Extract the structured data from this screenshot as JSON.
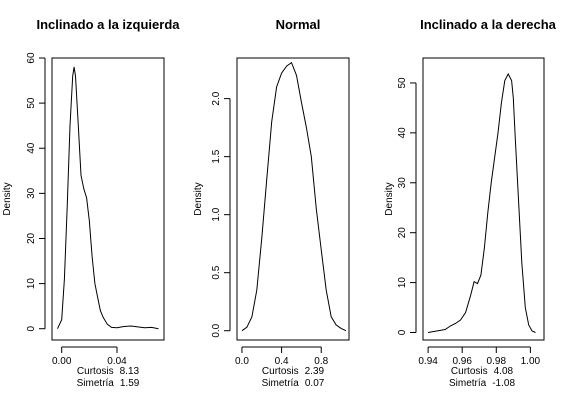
{
  "chart_data": [
    {
      "type": "line",
      "title": "Inclinado a la izquierda",
      "xlabel": "",
      "ylabel": "Density",
      "xlim": [
        -0.007,
        0.074
      ],
      "ylim": [
        -2.5,
        60
      ],
      "xticks": [
        0.0,
        0.04
      ],
      "xtick_labels": [
        "0.00",
        "0.04"
      ],
      "yticks": [
        0,
        10,
        20,
        30,
        40,
        50,
        60
      ],
      "ytick_labels": [
        "0",
        "10",
        "20",
        "30",
        "40",
        "50",
        "60"
      ],
      "stats": [
        {
          "label": "Curtosis",
          "value": "8.13"
        },
        {
          "label": "Simetría",
          "value": "1.59"
        }
      ],
      "series": [
        {
          "x": [
            -0.003,
            0.0,
            0.002,
            0.004,
            0.006,
            0.008,
            0.009,
            0.01,
            0.012,
            0.014,
            0.016,
            0.018,
            0.02,
            0.022,
            0.024,
            0.026,
            0.028,
            0.03,
            0.033,
            0.036,
            0.04,
            0.045,
            0.05,
            0.055,
            0.06,
            0.065,
            0.07
          ],
          "y": [
            0,
            2,
            11,
            27,
            45,
            56,
            58,
            56,
            45,
            34,
            31,
            29,
            24,
            16,
            10,
            7,
            4,
            2.5,
            1,
            0.3,
            0.2,
            0.5,
            0.6,
            0.4,
            0.2,
            0.3,
            0
          ]
        }
      ]
    },
    {
      "type": "line",
      "title": "Normal",
      "xlabel": "",
      "ylabel": "Density",
      "xlim": [
        -0.05,
        1.08
      ],
      "ylim": [
        -0.08,
        2.35
      ],
      "xticks": [
        0.0,
        0.4,
        0.8
      ],
      "xtick_labels": [
        "0.0",
        "0.4",
        "0.8"
      ],
      "yticks": [
        0.0,
        0.5,
        1.0,
        1.5,
        2.0
      ],
      "ytick_labels": [
        "0.0",
        "0.5",
        "1.0",
        "1.5",
        "2.0"
      ],
      "stats": [
        {
          "label": "Curtosis",
          "value": "2.39"
        },
        {
          "label": "Simetría",
          "value": "0.07"
        }
      ],
      "series": [
        {
          "x": [
            0.0,
            0.05,
            0.1,
            0.15,
            0.2,
            0.25,
            0.3,
            0.35,
            0.4,
            0.45,
            0.5,
            0.55,
            0.6,
            0.65,
            0.7,
            0.75,
            0.8,
            0.85,
            0.9,
            0.95,
            1.0,
            1.05
          ],
          "y": [
            0.0,
            0.03,
            0.12,
            0.35,
            0.8,
            1.3,
            1.8,
            2.1,
            2.22,
            2.28,
            2.31,
            2.2,
            1.97,
            1.75,
            1.5,
            1.05,
            0.7,
            0.35,
            0.12,
            0.05,
            0.02,
            0.0
          ]
        }
      ]
    },
    {
      "type": "line",
      "title": "Inclinado a la derecha",
      "xlabel": "",
      "ylabel": "Density",
      "xlim": [
        0.937,
        1.008
      ],
      "ylim": [
        -1.5,
        55
      ],
      "xticks": [
        0.94,
        0.96,
        0.98,
        1.0
      ],
      "xtick_labels": [
        "0.94",
        "0.96",
        "0.98",
        "1.00"
      ],
      "yticks": [
        0,
        10,
        20,
        30,
        40,
        50
      ],
      "ytick_labels": [
        "0",
        "10",
        "20",
        "30",
        "40",
        "50"
      ],
      "stats": [
        {
          "label": "Curtosis",
          "value": "4.08"
        },
        {
          "label": "Simetría",
          "value": "-1.08"
        }
      ],
      "series": [
        {
          "x": [
            0.94,
            0.945,
            0.95,
            0.953,
            0.956,
            0.959,
            0.962,
            0.965,
            0.967,
            0.969,
            0.971,
            0.973,
            0.975,
            0.977,
            0.979,
            0.981,
            0.983,
            0.985,
            0.987,
            0.989,
            0.99,
            0.991,
            0.993,
            0.995,
            0.997,
            0.999,
            1.001,
            1.003
          ],
          "y": [
            0,
            0.3,
            0.6,
            1.3,
            1.8,
            2.5,
            4.0,
            7.5,
            10.2,
            9.8,
            11.5,
            17,
            24,
            30,
            35,
            40,
            46,
            50.5,
            51.8,
            50.5,
            47,
            40,
            27,
            14,
            5,
            1.5,
            0.3,
            0
          ]
        }
      ]
    }
  ]
}
